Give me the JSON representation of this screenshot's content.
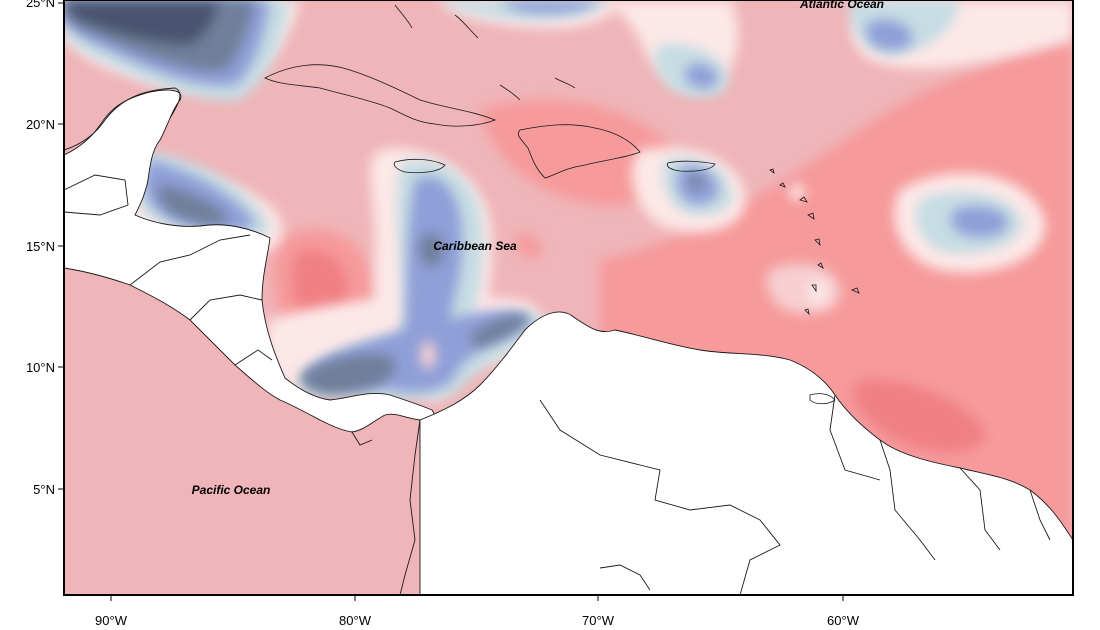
{
  "map": {
    "y_axis_ticks": [
      "25°N",
      "20°N",
      "15°N",
      "10°N",
      "5°N"
    ],
    "x_axis_ticks": [
      "90°W",
      "80°W",
      "70°W",
      "60°W"
    ],
    "labels": {
      "atlantic": "Atlantic Ocean",
      "caribbean": "Caribbean Sea",
      "pacific": "Pacific Ocean"
    },
    "palette": {
      "dark_navy": "#4a5570",
      "slate": "#6f7f9a",
      "blue": "#8f9fd8",
      "light_blue": "#c6dde3",
      "very_light_pink": "#fde8e8",
      "light_pink": "#f7cfd1",
      "pink": "#efb5b8",
      "salmon": "#f69a9b",
      "red": "#f08084"
    }
  }
}
